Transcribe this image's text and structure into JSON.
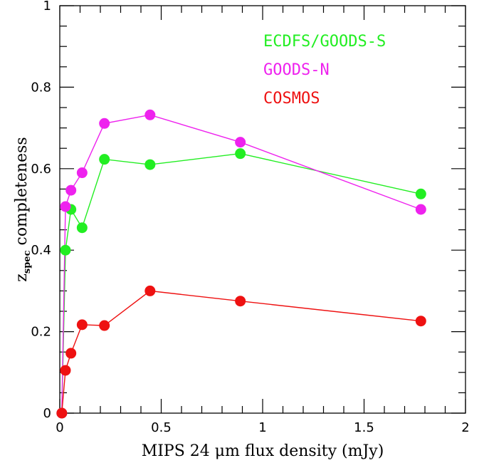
{
  "chart_data": {
    "type": "line",
    "xlabel": "MIPS 24 μm flux density (mJy)",
    "ylabel_main": "z",
    "ylabel_sub": "spec",
    "ylabel_rest": " completeness",
    "xlim": [
      0,
      2
    ],
    "ylim": [
      0,
      1
    ],
    "x_ticks": [
      0,
      0.5,
      1,
      1.5,
      2
    ],
    "x_tick_labels": [
      "0",
      "0.5",
      "1",
      "1.5",
      "2"
    ],
    "y_ticks": [
      0,
      0.2,
      0.4,
      0.6,
      0.8,
      1
    ],
    "y_tick_labels": [
      "0",
      "0.2",
      "0.4",
      "0.6",
      "0.8",
      "1"
    ],
    "grid": false,
    "legend_position": "top-right",
    "series": [
      {
        "name": "ECDFS/GOODS-S",
        "color": "#22ee22",
        "x": [
          0.01,
          0.028,
          0.055,
          0.11,
          0.22,
          0.445,
          0.89,
          1.78
        ],
        "y": [
          0.0,
          0.4,
          0.5,
          0.455,
          0.623,
          0.61,
          0.637,
          0.538
        ]
      },
      {
        "name": "GOODS-N",
        "color": "#ee22ee",
        "x": [
          0.01,
          0.028,
          0.055,
          0.11,
          0.22,
          0.445,
          0.89,
          1.78
        ],
        "y": [
          0.0,
          0.507,
          0.547,
          0.59,
          0.711,
          0.732,
          0.665,
          0.5
        ]
      },
      {
        "name": "COSMOS",
        "color": "#ee1111",
        "x": [
          0.01,
          0.028,
          0.055,
          0.11,
          0.22,
          0.445,
          0.89,
          1.78
        ],
        "y": [
          0.0,
          0.105,
          0.147,
          0.217,
          0.215,
          0.3,
          0.275,
          0.226
        ]
      }
    ]
  }
}
